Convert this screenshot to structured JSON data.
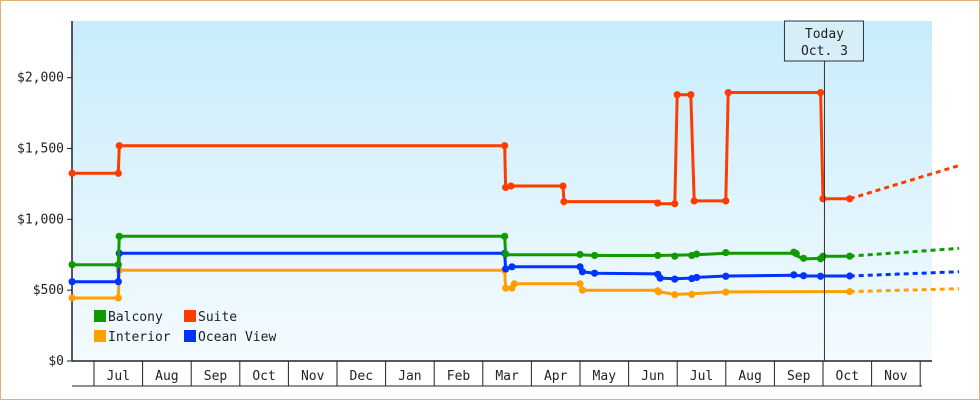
{
  "chart_data": {
    "type": "line",
    "title": "",
    "xlabel": "",
    "ylabel": "",
    "ylim": [
      0,
      2400
    ],
    "yticks": [
      {
        "value": 0,
        "label": "$0"
      },
      {
        "value": 500,
        "label": "$500"
      },
      {
        "value": 1000,
        "label": "$1,000"
      },
      {
        "value": 1500,
        "label": "$1,500"
      },
      {
        "value": 2000,
        "label": "$2,000"
      }
    ],
    "months": [
      "Jul",
      "Aug",
      "Sep",
      "Oct",
      "Nov",
      "Dec",
      "Jan",
      "Feb",
      "Mar",
      "Apr",
      "May",
      "Jun",
      "Jul",
      "Aug",
      "Sep",
      "Oct",
      "Nov"
    ],
    "today": {
      "line1": "Today",
      "line2": "Oct. 3",
      "x": 15.03
    },
    "legend": {
      "placement": "bottom-left"
    },
    "series": [
      {
        "name": "Suite",
        "color": "#ff3c00",
        "points": [
          [
            -0.45,
            1325
          ],
          [
            0.5,
            1325
          ],
          [
            0.52,
            1520
          ],
          [
            8.45,
            1520
          ],
          [
            8.47,
            1225
          ],
          [
            8.58,
            1225
          ],
          [
            8.6,
            1235
          ],
          [
            9.65,
            1235
          ],
          [
            9.67,
            1125
          ],
          [
            11.6,
            1125
          ],
          [
            11.62,
            1110
          ],
          [
            11.95,
            1110
          ],
          [
            12.0,
            1880
          ],
          [
            12.28,
            1880
          ],
          [
            12.35,
            1130
          ],
          [
            13.0,
            1130
          ],
          [
            13.05,
            1895
          ],
          [
            14.95,
            1895
          ],
          [
            15.0,
            1145
          ],
          [
            15.55,
            1145
          ]
        ],
        "markers": [
          [
            -0.45,
            1325
          ],
          [
            0.5,
            1325
          ],
          [
            0.52,
            1520
          ],
          [
            8.45,
            1520
          ],
          [
            8.47,
            1225
          ],
          [
            8.58,
            1235
          ],
          [
            9.65,
            1235
          ],
          [
            9.67,
            1125
          ],
          [
            11.6,
            1115
          ],
          [
            11.95,
            1110
          ],
          [
            12.0,
            1880
          ],
          [
            12.28,
            1880
          ],
          [
            12.35,
            1130
          ],
          [
            13.0,
            1130
          ],
          [
            13.05,
            1895
          ],
          [
            14.95,
            1895
          ],
          [
            15.0,
            1145
          ],
          [
            15.55,
            1145
          ]
        ],
        "projection": [
          [
            15.55,
            1145
          ],
          [
            17.8,
            1380
          ]
        ]
      },
      {
        "name": "Balcony",
        "color": "#109a00",
        "points": [
          [
            -0.45,
            680
          ],
          [
            0.5,
            680
          ],
          [
            0.52,
            880
          ],
          [
            8.45,
            880
          ],
          [
            8.47,
            750
          ],
          [
            10.0,
            750
          ],
          [
            10.3,
            745
          ],
          [
            11.6,
            745
          ],
          [
            12.4,
            750
          ],
          [
            13.0,
            760
          ],
          [
            14.4,
            760
          ],
          [
            14.45,
            745
          ],
          [
            14.6,
            720
          ],
          [
            14.95,
            725
          ],
          [
            15.0,
            740
          ],
          [
            15.55,
            740
          ]
        ],
        "markers": [
          [
            -0.45,
            680
          ],
          [
            0.5,
            680
          ],
          [
            0.52,
            880
          ],
          [
            8.45,
            880
          ],
          [
            8.47,
            755
          ],
          [
            10.0,
            752
          ],
          [
            10.3,
            745
          ],
          [
            11.6,
            745
          ],
          [
            11.95,
            740
          ],
          [
            12.3,
            745
          ],
          [
            12.4,
            755
          ],
          [
            13.0,
            765
          ],
          [
            14.4,
            768
          ],
          [
            14.45,
            758
          ],
          [
            14.6,
            725
          ],
          [
            14.95,
            722
          ],
          [
            15.0,
            740
          ],
          [
            15.55,
            740
          ]
        ],
        "projection": [
          [
            15.55,
            740
          ],
          [
            17.8,
            795
          ]
        ]
      },
      {
        "name": "Ocean View",
        "color": "#0033ff",
        "points": [
          [
            -0.45,
            560
          ],
          [
            0.5,
            560
          ],
          [
            0.52,
            760
          ],
          [
            8.45,
            760
          ],
          [
            8.47,
            650
          ],
          [
            8.6,
            665
          ],
          [
            10.0,
            665
          ],
          [
            10.05,
            630
          ],
          [
            10.3,
            620
          ],
          [
            11.6,
            615
          ],
          [
            11.65,
            585
          ],
          [
            11.95,
            580
          ],
          [
            12.3,
            585
          ],
          [
            12.4,
            590
          ],
          [
            13.0,
            600
          ],
          [
            14.4,
            605
          ],
          [
            14.6,
            600
          ],
          [
            14.95,
            600
          ],
          [
            15.0,
            600
          ],
          [
            15.55,
            600
          ]
        ],
        "markers": [
          [
            -0.45,
            560
          ],
          [
            0.5,
            560
          ],
          [
            0.52,
            760
          ],
          [
            8.45,
            760
          ],
          [
            8.47,
            650
          ],
          [
            8.6,
            665
          ],
          [
            10.0,
            665
          ],
          [
            10.05,
            630
          ],
          [
            10.3,
            620
          ],
          [
            11.6,
            612
          ],
          [
            11.65,
            585
          ],
          [
            11.95,
            578
          ],
          [
            12.3,
            582
          ],
          [
            12.4,
            590
          ],
          [
            13.0,
            598
          ],
          [
            14.4,
            608
          ],
          [
            14.6,
            602
          ],
          [
            14.95,
            598
          ],
          [
            15.55,
            600
          ]
        ],
        "projection": [
          [
            15.55,
            600
          ],
          [
            17.8,
            630
          ]
        ]
      },
      {
        "name": "Interior",
        "color": "#ffa000",
        "points": [
          [
            -0.45,
            445
          ],
          [
            0.5,
            445
          ],
          [
            0.52,
            640
          ],
          [
            8.45,
            640
          ],
          [
            8.47,
            515
          ],
          [
            8.6,
            515
          ],
          [
            8.65,
            545
          ],
          [
            10.0,
            545
          ],
          [
            10.05,
            500
          ],
          [
            11.6,
            500
          ],
          [
            11.62,
            490
          ],
          [
            11.95,
            470
          ],
          [
            12.3,
            475
          ],
          [
            13.0,
            488
          ],
          [
            15.0,
            490
          ],
          [
            15.55,
            490
          ]
        ],
        "markers": [
          [
            -0.45,
            445
          ],
          [
            0.5,
            445
          ],
          [
            0.52,
            640
          ],
          [
            8.45,
            640
          ],
          [
            8.47,
            515
          ],
          [
            8.6,
            515
          ],
          [
            8.65,
            545
          ],
          [
            10.0,
            545
          ],
          [
            10.05,
            500
          ],
          [
            11.6,
            495
          ],
          [
            11.62,
            488
          ],
          [
            11.95,
            468
          ],
          [
            12.3,
            470
          ],
          [
            13.0,
            486
          ],
          [
            15.55,
            490
          ]
        ],
        "projection": [
          [
            15.55,
            490
          ],
          [
            17.8,
            510
          ]
        ]
      }
    ],
    "legend_order": [
      "Balcony",
      "Suite",
      "Interior",
      "Ocean View"
    ]
  }
}
